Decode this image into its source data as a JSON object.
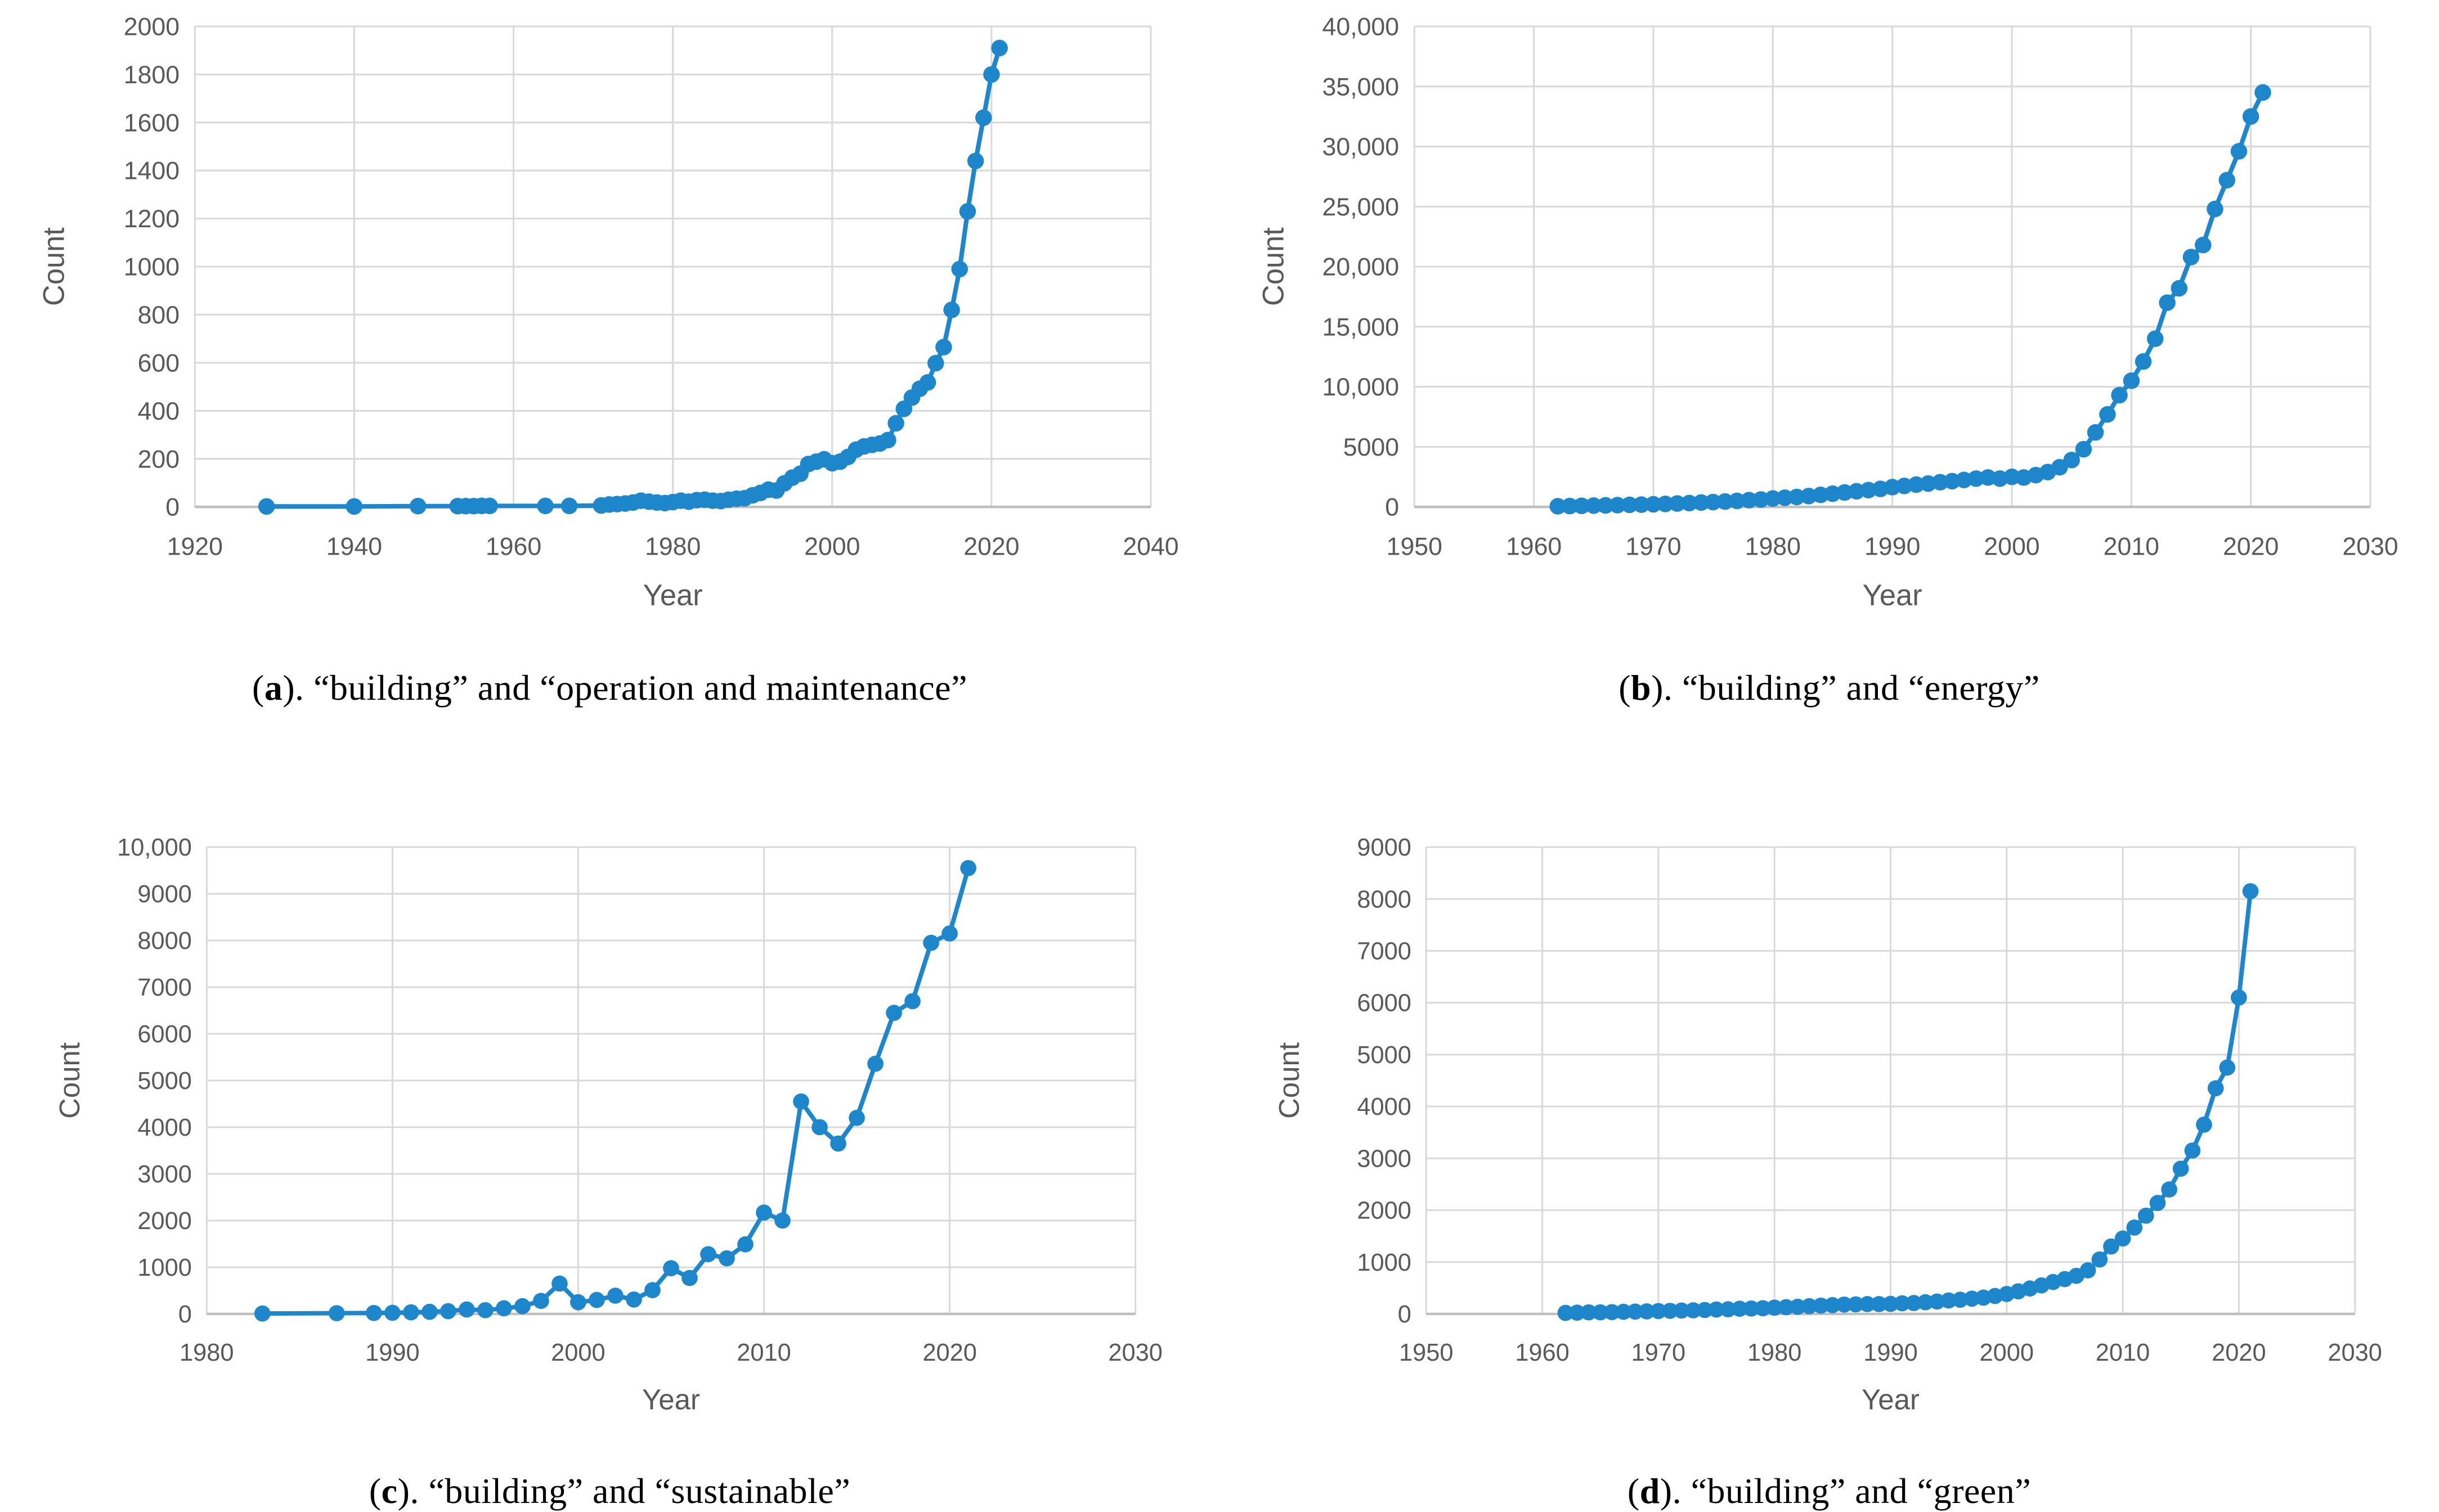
{
  "figure": {
    "panels": [
      {
        "id": "a",
        "caption": {
          "prefix": "(",
          "letter": "a",
          "mid": "). ",
          "text": "“building” and “operation and maintenance”"
        }
      },
      {
        "id": "b",
        "caption": {
          "prefix": "(",
          "letter": "b",
          "mid": "). ",
          "text": "“building” and “energy”"
        }
      },
      {
        "id": "c",
        "caption": {
          "prefix": "(",
          "letter": "c",
          "mid": "). ",
          "text": "“building” and “sustainable”"
        }
      },
      {
        "id": "d",
        "caption": {
          "prefix": "(",
          "letter": "d",
          "mid": "). ",
          "text": "“building” and “green”"
        }
      }
    ]
  },
  "style": {
    "marker_color": "#1E87CC",
    "grid_color": "#D9D9D9",
    "axis_line_color": "#BFBFBF",
    "tick_text_color": "#595959",
    "axis_title_color": "#262626"
  },
  "chart_data": [
    {
      "type": "line",
      "title": "",
      "xlabel": "Year",
      "ylabel": "Count",
      "xlim": [
        1920,
        2040
      ],
      "ylim": [
        0,
        2000
      ],
      "grid": true,
      "legend": "none",
      "x_ticks": {
        "values": [
          1920,
          1940,
          1960,
          1980,
          2000,
          2020,
          2040
        ],
        "labels": [
          "1920",
          "1940",
          "1960",
          "1980",
          "2000",
          "2020",
          "2040"
        ]
      },
      "y_ticks": {
        "values": [
          0,
          200,
          400,
          600,
          800,
          1000,
          1200,
          1400,
          1600,
          1800,
          2000
        ],
        "labels": [
          "0",
          "200",
          "400",
          "600",
          "800",
          "1000",
          "1200",
          "1400",
          "1600",
          "1800",
          "2000"
        ]
      },
      "points": [
        [
          1929,
          2
        ],
        [
          1940,
          2
        ],
        [
          1948,
          3
        ],
        [
          1953,
          3
        ],
        [
          1954,
          3
        ],
        [
          1955,
          3
        ],
        [
          1956,
          4
        ],
        [
          1957,
          4
        ],
        [
          1964,
          4
        ],
        [
          1967,
          4
        ],
        [
          1971,
          6
        ],
        [
          1972,
          10
        ],
        [
          1973,
          12
        ],
        [
          1974,
          14
        ],
        [
          1975,
          18
        ],
        [
          1976,
          26
        ],
        [
          1977,
          22
        ],
        [
          1978,
          18
        ],
        [
          1979,
          16
        ],
        [
          1980,
          20
        ],
        [
          1981,
          26
        ],
        [
          1982,
          22
        ],
        [
          1983,
          28
        ],
        [
          1984,
          30
        ],
        [
          1985,
          26
        ],
        [
          1986,
          24
        ],
        [
          1987,
          30
        ],
        [
          1988,
          34
        ],
        [
          1989,
          36
        ],
        [
          1990,
          48
        ],
        [
          1991,
          58
        ],
        [
          1992,
          72
        ],
        [
          1993,
          68
        ],
        [
          1994,
          98
        ],
        [
          1995,
          122
        ],
        [
          1996,
          138
        ],
        [
          1997,
          178
        ],
        [
          1998,
          188
        ],
        [
          1999,
          198
        ],
        [
          2000,
          182
        ],
        [
          2001,
          188
        ],
        [
          2002,
          208
        ],
        [
          2003,
          238
        ],
        [
          2004,
          252
        ],
        [
          2005,
          258
        ],
        [
          2006,
          264
        ],
        [
          2007,
          278
        ],
        [
          2008,
          348
        ],
        [
          2009,
          408
        ],
        [
          2010,
          455
        ],
        [
          2011,
          492
        ],
        [
          2012,
          518
        ],
        [
          2013,
          598
        ],
        [
          2014,
          665
        ],
        [
          2015,
          820
        ],
        [
          2016,
          990
        ],
        [
          2017,
          1230
        ],
        [
          2018,
          1440
        ],
        [
          2019,
          1620
        ],
        [
          2020,
          1800
        ],
        [
          2021,
          1910
        ]
      ]
    },
    {
      "type": "line",
      "title": "",
      "xlabel": "Year",
      "ylabel": "Count",
      "xlim": [
        1950,
        2030
      ],
      "ylim": [
        0,
        40000
      ],
      "grid": true,
      "legend": "none",
      "x_ticks": {
        "values": [
          1950,
          1960,
          1970,
          1980,
          1990,
          2000,
          2010,
          2020,
          2030
        ],
        "labels": [
          "1950",
          "1960",
          "1970",
          "1980",
          "1990",
          "2000",
          "2010",
          "2020",
          "2030"
        ]
      },
      "y_ticks": {
        "values": [
          0,
          5000,
          10000,
          15000,
          20000,
          25000,
          30000,
          35000,
          40000
        ],
        "labels": [
          "0",
          "5000",
          "10,000",
          "15,000",
          "20,000",
          "25,000",
          "30,000",
          "35,000",
          "40,000"
        ]
      },
      "points": [
        [
          1962,
          50
        ],
        [
          1963,
          70
        ],
        [
          1964,
          90
        ],
        [
          1965,
          110
        ],
        [
          1966,
          130
        ],
        [
          1967,
          150
        ],
        [
          1968,
          170
        ],
        [
          1969,
          195
        ],
        [
          1970,
          220
        ],
        [
          1971,
          250
        ],
        [
          1972,
          280
        ],
        [
          1973,
          320
        ],
        [
          1974,
          360
        ],
        [
          1975,
          400
        ],
        [
          1976,
          450
        ],
        [
          1977,
          500
        ],
        [
          1978,
          560
        ],
        [
          1979,
          620
        ],
        [
          1980,
          700
        ],
        [
          1981,
          760
        ],
        [
          1982,
          830
        ],
        [
          1983,
          900
        ],
        [
          1984,
          1000
        ],
        [
          1985,
          1100
        ],
        [
          1986,
          1200
        ],
        [
          1987,
          1300
        ],
        [
          1988,
          1400
        ],
        [
          1989,
          1500
        ],
        [
          1990,
          1650
        ],
        [
          1991,
          1750
        ],
        [
          1992,
          1850
        ],
        [
          1993,
          1950
        ],
        [
          1994,
          2050
        ],
        [
          1995,
          2150
        ],
        [
          1996,
          2250
        ],
        [
          1997,
          2350
        ],
        [
          1998,
          2450
        ],
        [
          1999,
          2350
        ],
        [
          2000,
          2500
        ],
        [
          2001,
          2450
        ],
        [
          2002,
          2650
        ],
        [
          2003,
          2900
        ],
        [
          2004,
          3300
        ],
        [
          2005,
          3900
        ],
        [
          2006,
          4800
        ],
        [
          2007,
          6200
        ],
        [
          2008,
          7700
        ],
        [
          2009,
          9300
        ],
        [
          2010,
          10500
        ],
        [
          2011,
          12100
        ],
        [
          2012,
          14000
        ],
        [
          2013,
          17000
        ],
        [
          2014,
          18200
        ],
        [
          2015,
          20800
        ],
        [
          2016,
          21800
        ],
        [
          2017,
          24800
        ],
        [
          2018,
          27200
        ],
        [
          2019,
          29600
        ],
        [
          2020,
          32500
        ],
        [
          2021,
          34500
        ]
      ]
    },
    {
      "type": "line",
      "title": "",
      "xlabel": "Year",
      "ylabel": "Count",
      "xlim": [
        1980,
        2030
      ],
      "ylim": [
        0,
        10000
      ],
      "grid": true,
      "legend": "none",
      "x_ticks": {
        "values": [
          1980,
          1990,
          2000,
          2010,
          2020,
          2030
        ],
        "labels": [
          "1980",
          "1990",
          "2000",
          "2010",
          "2020",
          "2030"
        ]
      },
      "y_ticks": {
        "values": [
          0,
          1000,
          2000,
          3000,
          4000,
          5000,
          6000,
          7000,
          8000,
          9000,
          10000
        ],
        "labels": [
          "0",
          "1000",
          "2000",
          "3000",
          "4000",
          "5000",
          "6000",
          "7000",
          "8000",
          "9000",
          "10,000"
        ]
      },
      "points": [
        [
          1983,
          10
        ],
        [
          1987,
          15
        ],
        [
          1989,
          20
        ],
        [
          1990,
          25
        ],
        [
          1991,
          35
        ],
        [
          1992,
          45
        ],
        [
          1993,
          60
        ],
        [
          1994,
          95
        ],
        [
          1995,
          80
        ],
        [
          1996,
          120
        ],
        [
          1997,
          165
        ],
        [
          1998,
          280
        ],
        [
          1999,
          650
        ],
        [
          2000,
          250
        ],
        [
          2001,
          300
        ],
        [
          2002,
          390
        ],
        [
          2003,
          310
        ],
        [
          2004,
          510
        ],
        [
          2005,
          980
        ],
        [
          2006,
          770
        ],
        [
          2007,
          1280
        ],
        [
          2008,
          1190
        ],
        [
          2009,
          1490
        ],
        [
          2010,
          2170
        ],
        [
          2011,
          2000
        ],
        [
          2012,
          4550
        ],
        [
          2013,
          4000
        ],
        [
          2014,
          3650
        ],
        [
          2015,
          4200
        ],
        [
          2016,
          5360
        ],
        [
          2017,
          6450
        ],
        [
          2018,
          6700
        ],
        [
          2019,
          7950
        ],
        [
          2020,
          8150
        ],
        [
          2021,
          9550
        ]
      ]
    },
    {
      "type": "line",
      "title": "",
      "xlabel": "Year",
      "ylabel": "Count",
      "xlim": [
        1950,
        2030
      ],
      "ylim": [
        0,
        9000
      ],
      "grid": true,
      "legend": "none",
      "x_ticks": {
        "values": [
          1950,
          1960,
          1970,
          1980,
          1990,
          2000,
          2010,
          2020,
          2030
        ],
        "labels": [
          "1950",
          "1960",
          "1970",
          "1980",
          "1990",
          "2000",
          "2010",
          "2020",
          "2030"
        ]
      },
      "y_ticks": {
        "values": [
          0,
          1000,
          2000,
          3000,
          4000,
          5000,
          6000,
          7000,
          8000,
          9000
        ],
        "labels": [
          "0",
          "1000",
          "2000",
          "3000",
          "4000",
          "5000",
          "6000",
          "7000",
          "8000",
          "9000"
        ]
      },
      "points": [
        [
          1962,
          20
        ],
        [
          1963,
          25
        ],
        [
          1964,
          30
        ],
        [
          1965,
          30
        ],
        [
          1966,
          35
        ],
        [
          1967,
          40
        ],
        [
          1968,
          45
        ],
        [
          1969,
          50
        ],
        [
          1970,
          55
        ],
        [
          1971,
          60
        ],
        [
          1972,
          65
        ],
        [
          1973,
          70
        ],
        [
          1974,
          75
        ],
        [
          1975,
          85
        ],
        [
          1976,
          90
        ],
        [
          1977,
          100
        ],
        [
          1978,
          105
        ],
        [
          1979,
          110
        ],
        [
          1980,
          120
        ],
        [
          1981,
          130
        ],
        [
          1982,
          140
        ],
        [
          1983,
          150
        ],
        [
          1984,
          160
        ],
        [
          1985,
          170
        ],
        [
          1986,
          180
        ],
        [
          1987,
          185
        ],
        [
          1988,
          190
        ],
        [
          1989,
          190
        ],
        [
          1990,
          195
        ],
        [
          1991,
          205
        ],
        [
          1992,
          210
        ],
        [
          1993,
          225
        ],
        [
          1994,
          240
        ],
        [
          1995,
          260
        ],
        [
          1996,
          275
        ],
        [
          1997,
          295
        ],
        [
          1998,
          315
        ],
        [
          1999,
          345
        ],
        [
          2000,
          385
        ],
        [
          2001,
          435
        ],
        [
          2002,
          490
        ],
        [
          2003,
          550
        ],
        [
          2004,
          615
        ],
        [
          2005,
          670
        ],
        [
          2006,
          735
        ],
        [
          2007,
          840
        ],
        [
          2008,
          1050
        ],
        [
          2009,
          1300
        ],
        [
          2010,
          1455
        ],
        [
          2011,
          1665
        ],
        [
          2012,
          1895
        ],
        [
          2013,
          2140
        ],
        [
          2014,
          2400
        ],
        [
          2015,
          2800
        ],
        [
          2016,
          3150
        ],
        [
          2017,
          3650
        ],
        [
          2018,
          4350
        ],
        [
          2019,
          4750
        ],
        [
          2020,
          6100
        ],
        [
          2021,
          8150
        ]
      ]
    }
  ]
}
